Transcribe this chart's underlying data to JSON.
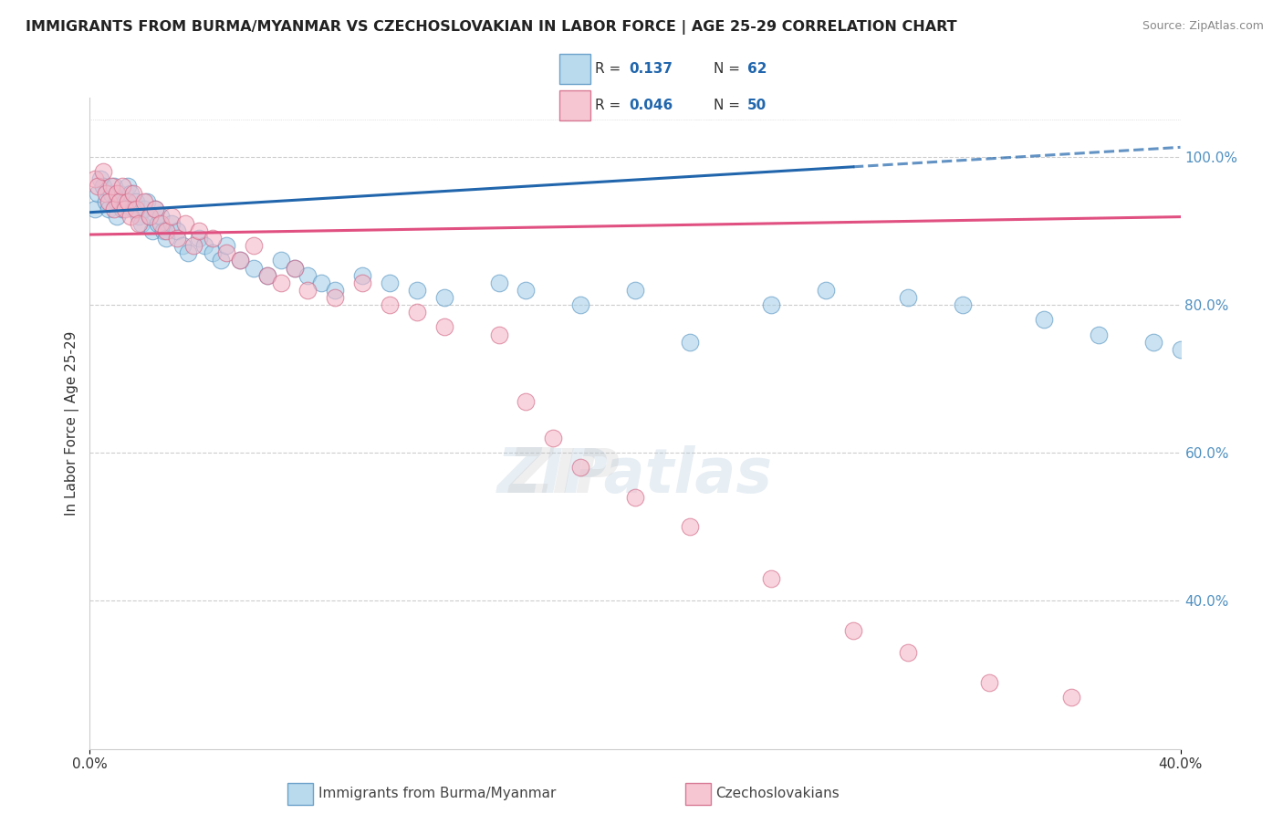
{
  "title": "IMMIGRANTS FROM BURMA/MYANMAR VS CZECHOSLOVAKIAN IN LABOR FORCE | AGE 25-29 CORRELATION CHART",
  "source": "Source: ZipAtlas.com",
  "ylabel": "In Labor Force | Age 25-29",
  "xlim": [
    0.0,
    0.4
  ],
  "ylim": [
    0.2,
    1.08
  ],
  "color_blue": "#a8d0e8",
  "color_pink": "#f4b8c8",
  "color_blue_line": "#2166ac",
  "color_pink_line": "#e05080",
  "color_blue_edge": "#5090c0",
  "color_pink_edge": "#d06080",
  "blue_scatter_x": [
    0.002,
    0.003,
    0.004,
    0.005,
    0.006,
    0.007,
    0.008,
    0.009,
    0.01,
    0.01,
    0.011,
    0.012,
    0.013,
    0.014,
    0.015,
    0.016,
    0.017,
    0.018,
    0.019,
    0.02,
    0.021,
    0.022,
    0.023,
    0.024,
    0.025,
    0.026,
    0.027,
    0.028,
    0.03,
    0.032,
    0.034,
    0.036,
    0.04,
    0.042,
    0.045,
    0.048,
    0.05,
    0.055,
    0.06,
    0.065,
    0.07,
    0.075,
    0.08,
    0.085,
    0.09,
    0.1,
    0.11,
    0.12,
    0.13,
    0.15,
    0.16,
    0.18,
    0.2,
    0.22,
    0.25,
    0.27,
    0.3,
    0.32,
    0.35,
    0.37,
    0.39,
    0.4
  ],
  "blue_scatter_y": [
    0.93,
    0.95,
    0.97,
    0.96,
    0.94,
    0.93,
    0.95,
    0.96,
    0.94,
    0.92,
    0.95,
    0.93,
    0.94,
    0.96,
    0.95,
    0.93,
    0.94,
    0.92,
    0.91,
    0.93,
    0.94,
    0.92,
    0.9,
    0.93,
    0.91,
    0.92,
    0.9,
    0.89,
    0.91,
    0.9,
    0.88,
    0.87,
    0.89,
    0.88,
    0.87,
    0.86,
    0.88,
    0.86,
    0.85,
    0.84,
    0.86,
    0.85,
    0.84,
    0.83,
    0.82,
    0.84,
    0.83,
    0.82,
    0.81,
    0.83,
    0.82,
    0.8,
    0.82,
    0.75,
    0.8,
    0.82,
    0.81,
    0.8,
    0.78,
    0.76,
    0.75,
    0.74
  ],
  "pink_scatter_x": [
    0.002,
    0.003,
    0.005,
    0.006,
    0.007,
    0.008,
    0.009,
    0.01,
    0.011,
    0.012,
    0.013,
    0.014,
    0.015,
    0.016,
    0.017,
    0.018,
    0.02,
    0.022,
    0.024,
    0.026,
    0.028,
    0.03,
    0.032,
    0.035,
    0.038,
    0.04,
    0.045,
    0.05,
    0.055,
    0.06,
    0.065,
    0.07,
    0.075,
    0.08,
    0.09,
    0.1,
    0.11,
    0.12,
    0.13,
    0.15,
    0.16,
    0.17,
    0.18,
    0.2,
    0.22,
    0.25,
    0.28,
    0.3,
    0.33,
    0.36
  ],
  "pink_scatter_y": [
    0.97,
    0.96,
    0.98,
    0.95,
    0.94,
    0.96,
    0.93,
    0.95,
    0.94,
    0.96,
    0.93,
    0.94,
    0.92,
    0.95,
    0.93,
    0.91,
    0.94,
    0.92,
    0.93,
    0.91,
    0.9,
    0.92,
    0.89,
    0.91,
    0.88,
    0.9,
    0.89,
    0.87,
    0.86,
    0.88,
    0.84,
    0.83,
    0.85,
    0.82,
    0.81,
    0.83,
    0.8,
    0.79,
    0.77,
    0.76,
    0.67,
    0.62,
    0.58,
    0.54,
    0.5,
    0.43,
    0.36,
    0.33,
    0.29,
    0.27
  ],
  "background_color": "#ffffff",
  "grid_color": "#cccccc"
}
